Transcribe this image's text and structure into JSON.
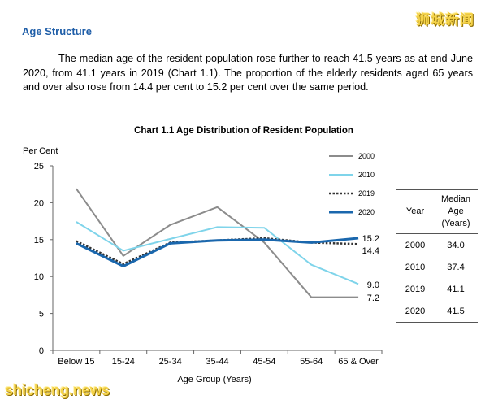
{
  "section_title": "Age Structure",
  "paragraph": "The median age of the resident population rose further to reach 41.5 years as at end-June 2020, from 41.1 years in 2019 (Chart 1.1). The proportion of the elderly residents aged 65 years and over also rose from 14.4 per cent to 15.2 per cent over the same period.",
  "watermark_top": "狮城新闻",
  "watermark_bottom": "shicheng.news",
  "chart_data": {
    "type": "line",
    "title": "Chart 1.1  Age Distribution of Resident Population",
    "ylabel": "Per Cent",
    "xlabel": "Age Group (Years)",
    "categories": [
      "Below 15",
      "15-24",
      "25-34",
      "35-44",
      "45-54",
      "55-64",
      "65 & Over"
    ],
    "ylim": [
      0,
      25
    ],
    "yticks": [
      0,
      5,
      10,
      15,
      20,
      25
    ],
    "grid": false,
    "legend_position": "top-right",
    "series": [
      {
        "name": "2000",
        "color": "#8c8c8c",
        "dash": "solid",
        "width": 2,
        "values": [
          21.9,
          12.8,
          17.0,
          19.4,
          14.6,
          7.2,
          7.2
        ],
        "end_label": "7.2"
      },
      {
        "name": "2010",
        "color": "#7fd4ea",
        "dash": "solid",
        "width": 2,
        "values": [
          17.4,
          13.5,
          15.1,
          16.7,
          16.6,
          11.6,
          9.0
        ],
        "end_label": "9.0"
      },
      {
        "name": "2019",
        "color": "#333333",
        "dash": "dotted",
        "width": 2.5,
        "values": [
          14.8,
          11.7,
          14.6,
          14.9,
          15.2,
          14.6,
          14.4
        ],
        "end_label": "14.4"
      },
      {
        "name": "2020",
        "color": "#1a67ad",
        "dash": "solid",
        "width": 3,
        "values": [
          14.5,
          11.4,
          14.5,
          14.9,
          15.0,
          14.6,
          15.2
        ],
        "end_label": "15.2"
      }
    ]
  },
  "median_table": {
    "headers": [
      "Year",
      "Median Age (Years)"
    ],
    "rows": [
      [
        "2000",
        "34.0"
      ],
      [
        "2010",
        "37.4"
      ],
      [
        "2019",
        "41.1"
      ],
      [
        "2020",
        "41.5"
      ]
    ]
  }
}
